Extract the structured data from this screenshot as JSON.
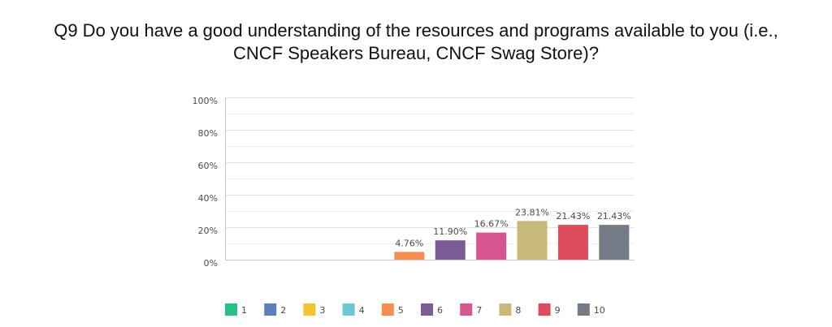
{
  "chart_data": {
    "type": "bar",
    "title_lines": [
      "Q9 Do you have a good understanding of the resources and programs available to you (i.e.,",
      "CNCF Speakers Bureau, CNCF Swag Store)?"
    ],
    "categories": [
      "1",
      "2",
      "3",
      "4",
      "5",
      "6",
      "7",
      "8",
      "9",
      "10"
    ],
    "values": [
      0,
      0,
      0,
      0,
      4.76,
      11.9,
      16.67,
      23.81,
      21.43,
      21.43
    ],
    "value_labels": [
      "",
      "",
      "",
      "",
      "4.76%",
      "11.90%",
      "16.67%",
      "23.81%",
      "21.43%",
      "21.43%"
    ],
    "colors": [
      "#26c281",
      "#5b7fbd",
      "#f4c430",
      "#6bc9d1",
      "#f58d4e",
      "#7c5c96",
      "#d8568f",
      "#c8b97a",
      "#de4b5c",
      "#737b86"
    ],
    "ylim": [
      0,
      100
    ],
    "yticks": [
      0,
      20,
      40,
      60,
      80,
      100
    ],
    "ytick_labels": [
      "0%",
      "20%",
      "40%",
      "60%",
      "80%",
      "100%"
    ],
    "grid": true,
    "legend_position": "bottom"
  }
}
